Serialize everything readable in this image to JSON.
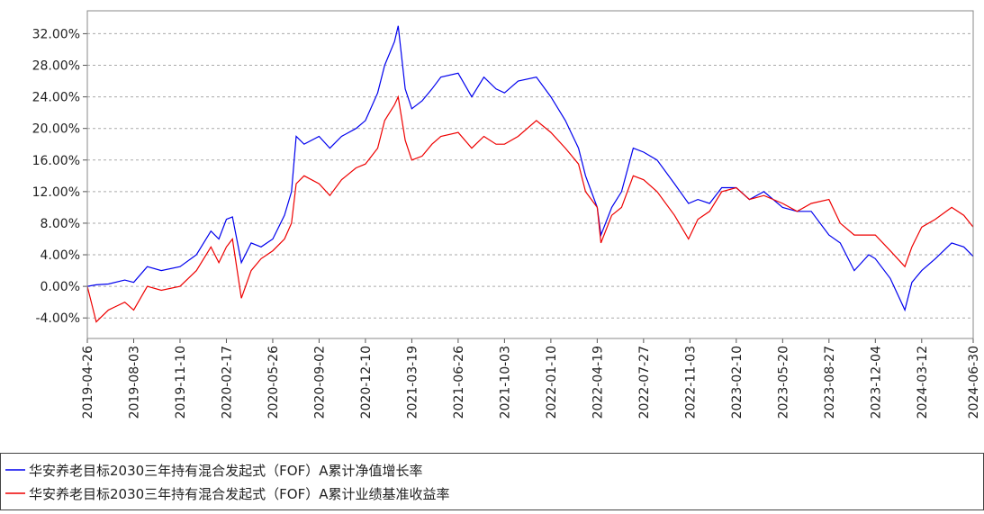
{
  "chart_data": {
    "type": "line",
    "x": [
      "2019-04-26",
      "2019-05-15",
      "2019-06-10",
      "2019-07-15",
      "2019-08-03",
      "2019-09-01",
      "2019-10-01",
      "2019-11-10",
      "2019-12-15",
      "2020-01-15",
      "2020-02-01",
      "2020-02-17",
      "2020-03-01",
      "2020-03-20",
      "2020-04-10",
      "2020-05-01",
      "2020-05-26",
      "2020-06-20",
      "2020-07-05",
      "2020-07-15",
      "2020-08-01",
      "2020-09-02",
      "2020-09-25",
      "2020-10-20",
      "2020-11-20",
      "2020-12-10",
      "2021-01-05",
      "2021-01-20",
      "2021-02-10",
      "2021-02-18",
      "2021-03-05",
      "2021-03-19",
      "2021-04-10",
      "2021-05-01",
      "2021-05-20",
      "2021-06-26",
      "2021-07-25",
      "2021-08-20",
      "2021-09-15",
      "2021-10-03",
      "2021-11-01",
      "2021-12-10",
      "2022-01-10",
      "2022-02-10",
      "2022-03-10",
      "2022-03-25",
      "2022-04-19",
      "2022-04-27",
      "2022-05-20",
      "2022-06-10",
      "2022-07-05",
      "2022-07-27",
      "2022-08-25",
      "2022-10-01",
      "2022-10-31",
      "2022-11-20",
      "2022-12-15",
      "2023-01-10",
      "2023-02-10",
      "2023-03-10",
      "2023-04-10",
      "2023-05-20",
      "2023-06-20",
      "2023-07-20",
      "2023-08-27",
      "2023-09-20",
      "2023-10-20",
      "2023-11-20",
      "2023-12-04",
      "2024-01-05",
      "2024-02-05",
      "2024-02-20",
      "2024-03-12",
      "2024-04-10",
      "2024-05-15",
      "2024-06-10",
      "2024-06-30"
    ],
    "series": [
      {
        "name": "华安养老目标2030三年持有混合发起式（FOF）A累计净值增长率",
        "color": "#0000ee",
        "values": [
          0,
          0.2,
          0.3,
          0.8,
          0.5,
          2.5,
          2.0,
          2.5,
          4.0,
          7.0,
          6.0,
          8.5,
          8.8,
          3.0,
          5.5,
          5.0,
          6.0,
          9.0,
          12.0,
          19.0,
          18.0,
          19.0,
          17.5,
          19.0,
          20.0,
          21.0,
          24.5,
          28.0,
          31.0,
          33.0,
          25.0,
          22.5,
          23.5,
          25.0,
          26.5,
          27.0,
          24.0,
          26.5,
          25.0,
          24.5,
          26.0,
          26.5,
          24.0,
          21.0,
          17.5,
          14.0,
          10.0,
          6.5,
          10.0,
          12.0,
          17.5,
          17.0,
          16.0,
          13.0,
          10.5,
          11.0,
          10.5,
          12.5,
          12.5,
          11.0,
          12.0,
          10.0,
          9.5,
          9.5,
          6.5,
          5.5,
          2.0,
          4.0,
          3.5,
          1.0,
          -3.0,
          0.5,
          2.0,
          3.5,
          5.5,
          5.0,
          3.8
        ]
      },
      {
        "name": "华安养老目标2030三年持有混合发起式（FOF）A累计业绩基准收益率",
        "color": "#ee0000",
        "values": [
          0,
          -4.5,
          -3.0,
          -2.0,
          -3.0,
          0,
          -0.5,
          0,
          2.0,
          5.0,
          3.0,
          5.0,
          6.0,
          -1.5,
          2.0,
          3.5,
          4.5,
          6.0,
          8.0,
          13.0,
          14.0,
          13.0,
          11.5,
          13.5,
          15.0,
          15.5,
          17.5,
          21.0,
          23.0,
          24.0,
          18.5,
          16.0,
          16.5,
          18.0,
          19.0,
          19.5,
          17.5,
          19.0,
          18.0,
          18.0,
          19.0,
          21.0,
          19.5,
          17.5,
          15.5,
          12.0,
          10.0,
          5.5,
          9.0,
          10.0,
          14.0,
          13.5,
          12.0,
          9.0,
          6.0,
          8.5,
          9.5,
          12.0,
          12.5,
          11.0,
          11.5,
          10.5,
          9.5,
          10.5,
          11.0,
          8.0,
          6.5,
          6.5,
          6.5,
          4.5,
          2.5,
          5.0,
          7.5,
          8.5,
          10.0,
          9.0,
          7.5
        ]
      }
    ],
    "xlim": [
      "2019-04-26",
      "2024-06-30"
    ],
    "xticks": [
      "2019-04-26",
      "2019-08-03",
      "2019-11-10",
      "2020-02-17",
      "2020-05-26",
      "2020-09-02",
      "2020-12-10",
      "2021-03-19",
      "2021-06-26",
      "2021-10-03",
      "2022-01-10",
      "2022-04-19",
      "2022-07-27",
      "2022-11-03",
      "2023-02-10",
      "2023-05-20",
      "2023-08-27",
      "2023-12-04",
      "2024-03-12",
      "2024-06-30"
    ],
    "ylim": [
      -6.6,
      34.9
    ],
    "yticks": [
      {
        "value": -4,
        "label": "-4.00%"
      },
      {
        "value": 0,
        "label": "0.00%"
      },
      {
        "value": 4,
        "label": "4.00%"
      },
      {
        "value": 8,
        "label": "8.00%"
      },
      {
        "value": 12,
        "label": "12.00%"
      },
      {
        "value": 16,
        "label": "16.00%"
      },
      {
        "value": 20,
        "label": "20.00%"
      },
      {
        "value": 24,
        "label": "24.00%"
      },
      {
        "value": 28,
        "label": "28.00%"
      },
      {
        "value": 32,
        "label": "32.00%"
      }
    ],
    "grid": true
  }
}
